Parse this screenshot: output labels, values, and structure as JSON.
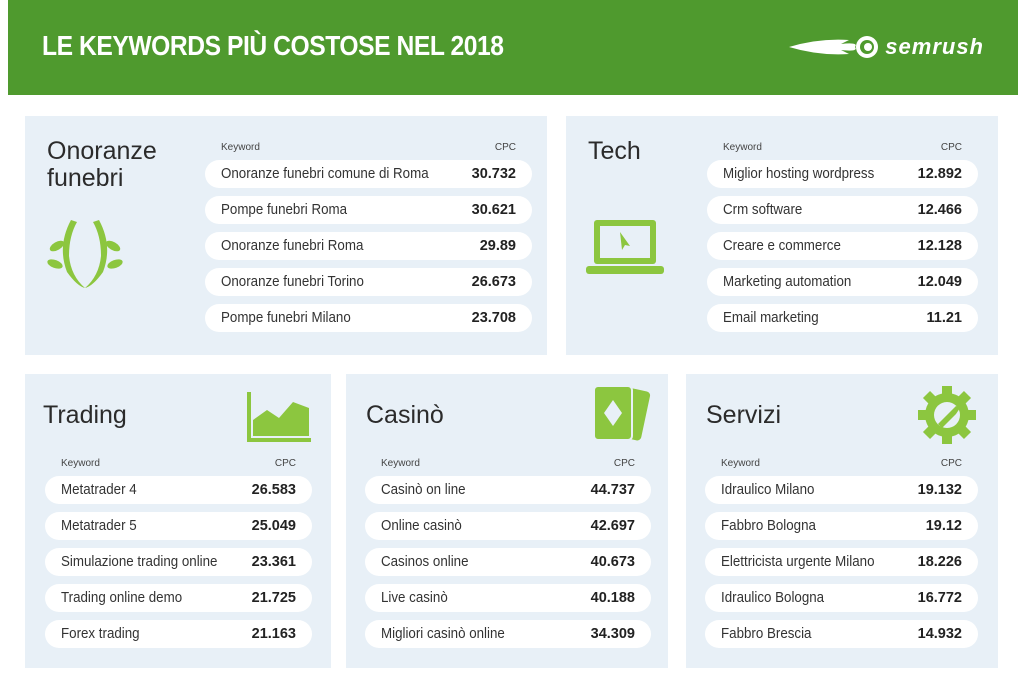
{
  "header": {
    "title": "LE KEYWORDS PIÙ COSTOSE NEL 2018",
    "logo": "semrush",
    "color": "#4f9a2e"
  },
  "column_keyword": "Keyword",
  "column_cpc": "CPC",
  "accent": "#8cc63f",
  "panels": [
    {
      "id": "onoranze",
      "title": "Onoranze funebri",
      "icon": "laurel-wreath-icon",
      "rows": [
        {
          "keyword": "Onoranze funebri comune di Roma",
          "cpc": "30.732"
        },
        {
          "keyword": "Pompe funebri Roma",
          "cpc": "30.621"
        },
        {
          "keyword": "Onoranze funebri Roma",
          "cpc": "29.89"
        },
        {
          "keyword": "Onoranze funebri Torino",
          "cpc": "26.673"
        },
        {
          "keyword": "Pompe funebri Milano",
          "cpc": "23.708"
        }
      ]
    },
    {
      "id": "tech",
      "title": "Tech",
      "icon": "laptop-icon",
      "rows": [
        {
          "keyword": "Miglior hosting wordpress",
          "cpc": "12.892"
        },
        {
          "keyword": "Crm software",
          "cpc": "12.466"
        },
        {
          "keyword": "Creare e commerce",
          "cpc": "12.128"
        },
        {
          "keyword": "Marketing automation",
          "cpc": "12.049"
        },
        {
          "keyword": "Email marketing",
          "cpc": "11.21"
        }
      ]
    },
    {
      "id": "trading",
      "title": "Trading",
      "icon": "area-chart-icon",
      "rows": [
        {
          "keyword": "Metatrader 4",
          "cpc": "26.583"
        },
        {
          "keyword": "Metatrader 5",
          "cpc": "25.049"
        },
        {
          "keyword": "Simulazione trading online",
          "cpc": "23.361"
        },
        {
          "keyword": "Trading online demo",
          "cpc": "21.725"
        },
        {
          "keyword": "Forex trading",
          "cpc": "21.163"
        }
      ]
    },
    {
      "id": "casino",
      "title": "Casinò",
      "icon": "playing-cards-icon",
      "rows": [
        {
          "keyword": "Casinò on line",
          "cpc": "44.737"
        },
        {
          "keyword": "Online casinò",
          "cpc": "42.697"
        },
        {
          "keyword": "Casinos online",
          "cpc": "40.673"
        },
        {
          "keyword": "Live casinò",
          "cpc": "40.188"
        },
        {
          "keyword": "Migliori casinò online",
          "cpc": "34.309"
        }
      ]
    },
    {
      "id": "servizi",
      "title": "Servizi",
      "icon": "gear-wrench-icon",
      "rows": [
        {
          "keyword": "Idraulico Milano",
          "cpc": "19.132"
        },
        {
          "keyword": "Fabbro Bologna",
          "cpc": "19.12"
        },
        {
          "keyword": "Elettricista urgente Milano",
          "cpc": "18.226"
        },
        {
          "keyword": "Idraulico Bologna",
          "cpc": "16.772"
        },
        {
          "keyword": "Fabbro Brescia",
          "cpc": "14.932"
        }
      ]
    }
  ]
}
